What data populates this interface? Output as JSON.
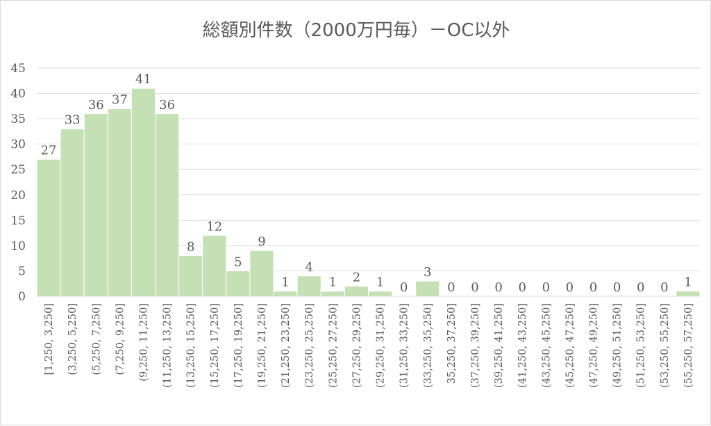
{
  "chart_data": {
    "type": "bar",
    "title": "総額別件数（2000万円毎）－OC以外",
    "xlabel": "",
    "ylabel": "",
    "ylim": [
      0,
      45
    ],
    "yticks": [
      0,
      5,
      10,
      15,
      20,
      25,
      30,
      35,
      40,
      45
    ],
    "grid": true,
    "legend": "none",
    "bar_color": "#c5e0b4",
    "bar_stroke": "#ffffff",
    "grid_color": "#d9d9d9",
    "text_color": "#595959",
    "categories": [
      "[1,250, 3,250]",
      "(3,250, 5,250]",
      "(5,250, 7,250]",
      "(7,250, 9,250]",
      "(9,250, 11,250]",
      "(11,250, 13,250]",
      "(13,250, 15,250]",
      "(15,250, 17,250]",
      "(17,250, 19,250]",
      "(19,250, 21,250]",
      "(21,250, 23,250]",
      "(23,250, 25,250]",
      "(25,250, 27,250]",
      "(27,250, 29,250]",
      "(29,250, 31,250]",
      "(31,250, 33,250]",
      "(33,250, 35,250]",
      "35,250, 37,250]",
      "(37,250, 39,250]",
      "(39,250, 41,250]",
      "(41,250, 43,250]",
      "(43,250, 45,250]",
      "(45,250, 47,250]",
      "(47,250, 49,250]",
      "(49,250, 51,250]",
      "(51,250, 53,250]",
      "(53,250, 55,250]",
      "(55,250, 57,250]"
    ],
    "values": [
      27,
      33,
      36,
      37,
      41,
      36,
      8,
      12,
      5,
      9,
      1,
      4,
      1,
      2,
      1,
      0,
      3,
      0,
      0,
      0,
      0,
      0,
      0,
      0,
      0,
      0,
      0,
      1
    ]
  }
}
